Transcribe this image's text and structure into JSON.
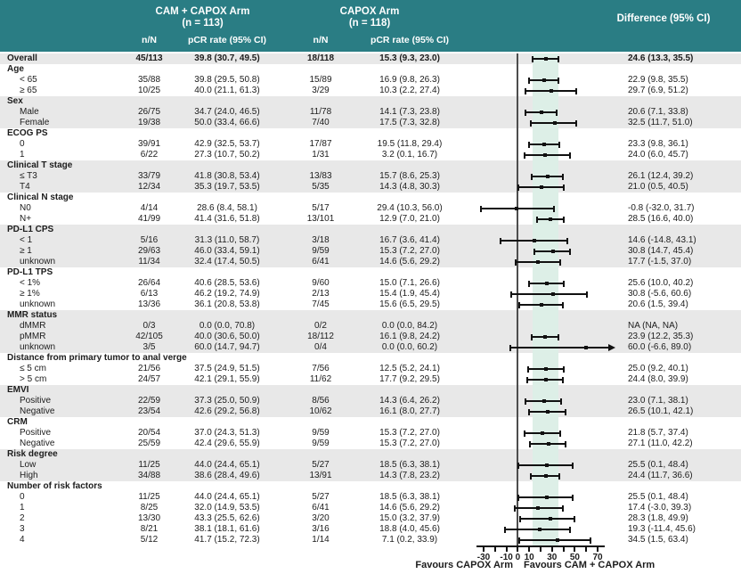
{
  "header": {
    "arm1_title": "CAM + CAPOX Arm",
    "arm1_n": "(n = 113)",
    "arm2_title": "CAPOX Arm",
    "arm2_n": "(n = 118)",
    "diff_title": "Difference (95% CI)",
    "col_nN": "n/N",
    "col_pcr": "pCR rate (95% CI)"
  },
  "colors": {
    "header_teal": "#2a7d84",
    "header_text": "#ffffff",
    "row_shade": "#e8e8e8",
    "ci_band": "#ddefe7",
    "marker_black": "#111111",
    "zero_line_gray": "#4d4d4d"
  },
  "chart_data": {
    "type": "forest",
    "axis": {
      "tick_start": -30,
      "tick_end": 70,
      "tick_step": 10,
      "tick_labels": [
        -30,
        -10,
        0,
        10,
        30,
        50,
        70
      ],
      "zero_ref": 0,
      "band": [
        13.3,
        35.5
      ],
      "xlabel_left": "Favours CAPOX Arm",
      "xlabel_right": "Favours CAM + CAPOX Arm"
    },
    "rows": [
      {
        "label": "Overall",
        "bold": true,
        "shade": true,
        "n1": "45/113",
        "pcr1": "39.8 (30.7, 49.5)",
        "n2": "18/118",
        "pcr2": "15.3 (9.3, 23.0)",
        "diff": "24.6 (13.3, 35.5)",
        "est": 24.6,
        "lo": 13.3,
        "hi": 35.5
      },
      {
        "label": "Age",
        "group": true,
        "bold": true,
        "shade": false
      },
      {
        "label": "< 65",
        "indent": true,
        "shade": false,
        "n1": "35/88",
        "pcr1": "39.8 (29.5, 50.8)",
        "n2": "15/89",
        "pcr2": "16.9 (9.8, 26.3)",
        "diff": "22.9 (9.8, 35.5)",
        "est": 22.9,
        "lo": 9.8,
        "hi": 35.5
      },
      {
        "label": "≥ 65",
        "indent": true,
        "shade": false,
        "n1": "10/25",
        "pcr1": "40.0 (21.1, 61.3)",
        "n2": "3/29",
        "pcr2": "10.3 (2.2, 27.4)",
        "diff": "29.7 (6.9, 51.2)",
        "est": 29.7,
        "lo": 6.9,
        "hi": 51.2
      },
      {
        "label": "Sex",
        "group": true,
        "bold": true,
        "shade": true
      },
      {
        "label": "Male",
        "indent": true,
        "shade": true,
        "n1": "26/75",
        "pcr1": "34.7 (24.0, 46.5)",
        "n2": "11/78",
        "pcr2": "14.1 (7.3, 23.8)",
        "diff": "20.6 (7.1, 33.8)",
        "est": 20.6,
        "lo": 7.1,
        "hi": 33.8
      },
      {
        "label": "Female",
        "indent": true,
        "shade": true,
        "n1": "19/38",
        "pcr1": "50.0 (33.4, 66.6)",
        "n2": "7/40",
        "pcr2": "17.5 (7.3, 32.8)",
        "diff": "32.5 (11.7, 51.0)",
        "est": 32.5,
        "lo": 11.7,
        "hi": 51.0
      },
      {
        "label": "ECOG PS",
        "group": true,
        "bold": true,
        "shade": false
      },
      {
        "label": "0",
        "indent": true,
        "shade": false,
        "n1": "39/91",
        "pcr1": "42.9 (32.5, 53.7)",
        "n2": "17/87",
        "pcr2": "19.5 (11.8, 29.4)",
        "diff": "23.3 (9.8, 36.1)",
        "est": 23.3,
        "lo": 9.8,
        "hi": 36.1
      },
      {
        "label": "1",
        "indent": true,
        "shade": false,
        "n1": "6/22",
        "pcr1": "27.3 (10.7, 50.2)",
        "n2": "1/31",
        "pcr2": "3.2 (0.1, 16.7)",
        "diff": "24.0 (6.0, 45.7)",
        "est": 24.0,
        "lo": 6.0,
        "hi": 45.7
      },
      {
        "label": "Clinical T stage",
        "group": true,
        "bold": true,
        "shade": true
      },
      {
        "label": "≤ T3",
        "indent": true,
        "shade": true,
        "n1": "33/79",
        "pcr1": "41.8 (30.8, 53.4)",
        "n2": "13/83",
        "pcr2": "15.7 (8.6, 25.3)",
        "diff": "26.1 (12.4, 39.2)",
        "est": 26.1,
        "lo": 12.4,
        "hi": 39.2
      },
      {
        "label": "T4",
        "indent": true,
        "shade": true,
        "n1": "12/34",
        "pcr1": "35.3 (19.7, 53.5)",
        "n2": "5/35",
        "pcr2": "14.3 (4.8, 30.3)",
        "diff": "21.0 (0.5, 40.5)",
        "est": 21.0,
        "lo": 0.5,
        "hi": 40.5
      },
      {
        "label": "Clinical N stage",
        "group": true,
        "bold": true,
        "shade": false
      },
      {
        "label": "N0",
        "indent": true,
        "shade": false,
        "n1": "4/14",
        "pcr1": "28.6 (8.4, 58.1)",
        "n2": "5/17",
        "pcr2": "29.4 (10.3, 56.0)",
        "diff": "-0.8 (-32.0, 31.7)",
        "est": -0.8,
        "lo": -32.0,
        "hi": 31.7
      },
      {
        "label": "N+",
        "indent": true,
        "shade": false,
        "n1": "41/99",
        "pcr1": "41.4 (31.6, 51.8)",
        "n2": "13/101",
        "pcr2": "12.9 (7.0, 21.0)",
        "diff": "28.5 (16.6, 40.0)",
        "est": 28.5,
        "lo": 16.6,
        "hi": 40.0
      },
      {
        "label": "PD-L1 CPS",
        "group": true,
        "bold": true,
        "shade": true
      },
      {
        "label": "< 1",
        "indent": true,
        "shade": true,
        "n1": "5/16",
        "pcr1": "31.3 (11.0, 58.7)",
        "n2": "3/18",
        "pcr2": "16.7 (3.6, 41.4)",
        "diff": "14.6 (-14.8, 43.1)",
        "est": 14.6,
        "lo": -14.8,
        "hi": 43.1
      },
      {
        "label": "≥ 1",
        "indent": true,
        "shade": true,
        "n1": "29/63",
        "pcr1": "46.0 (33.4, 59.1)",
        "n2": "9/59",
        "pcr2": "15.3 (7.2, 27.0)",
        "diff": "30.8 (14.7, 45.4)",
        "est": 30.8,
        "lo": 14.7,
        "hi": 45.4
      },
      {
        "label": "unknown",
        "indent": true,
        "shade": true,
        "n1": "11/34",
        "pcr1": "32.4 (17.4, 50.5)",
        "n2": "6/41",
        "pcr2": "14.6 (5.6, 29.2)",
        "diff": "17.7 (-1.5, 37.0)",
        "est": 17.7,
        "lo": -1.5,
        "hi": 37.0
      },
      {
        "label": "PD-L1 TPS",
        "group": true,
        "bold": true,
        "shade": false
      },
      {
        "label": "< 1%",
        "indent": true,
        "shade": false,
        "n1": "26/64",
        "pcr1": "40.6 (28.5, 53.6)",
        "n2": "9/60",
        "pcr2": "15.0 (7.1, 26.6)",
        "diff": "25.6 (10.0, 40.2)",
        "est": 25.6,
        "lo": 10.0,
        "hi": 40.2
      },
      {
        "label": "≥ 1%",
        "indent": true,
        "shade": false,
        "n1": "6/13",
        "pcr1": "46.2 (19.2, 74.9)",
        "n2": "2/13",
        "pcr2": "15.4 (1.9, 45.4)",
        "diff": "30.8 (-5.6, 60.6)",
        "est": 30.8,
        "lo": -5.6,
        "hi": 60.6
      },
      {
        "label": "unknown",
        "indent": true,
        "shade": false,
        "n1": "13/36",
        "pcr1": "36.1 (20.8, 53.8)",
        "n2": "7/45",
        "pcr2": "15.6 (6.5, 29.5)",
        "diff": "20.6 (1.5, 39.4)",
        "est": 20.6,
        "lo": 1.5,
        "hi": 39.4
      },
      {
        "label": "MMR status",
        "group": true,
        "bold": true,
        "shade": true
      },
      {
        "label": "dMMR",
        "indent": true,
        "shade": true,
        "n1": "0/3",
        "pcr1": "0.0 (0.0, 70.8)",
        "n2": "0/2",
        "pcr2": "0.0 (0.0, 84.2)",
        "diff": "NA (NA, NA)",
        "est": null
      },
      {
        "label": "pMMR",
        "indent": true,
        "shade": true,
        "n1": "42/105",
        "pcr1": "40.0 (30.6, 50.0)",
        "n2": "18/112",
        "pcr2": "16.1 (9.8, 24.2)",
        "diff": "23.9 (12.2, 35.3)",
        "est": 23.9,
        "lo": 12.2,
        "hi": 35.3
      },
      {
        "label": "unknown",
        "indent": true,
        "shade": true,
        "n1": "3/5",
        "pcr1": "60.0 (14.7, 94.7)",
        "n2": "0/4",
        "pcr2": "0.0 (0.0, 60.2)",
        "diff": "60.0 (-6.6, 89.0)",
        "est": 60.0,
        "lo": -6.6,
        "hi": 89.0,
        "arrow": true
      },
      {
        "label": "Distance from primary tumor to anal verge",
        "group": true,
        "bold": true,
        "shade": false
      },
      {
        "label": "≤ 5 cm",
        "indent": true,
        "shade": false,
        "n1": "21/56",
        "pcr1": "37.5 (24.9, 51.5)",
        "n2": "7/56",
        "pcr2": "12.5 (5.2, 24.1)",
        "diff": "25.0 (9.2, 40.1)",
        "est": 25.0,
        "lo": 9.2,
        "hi": 40.1
      },
      {
        "label": "> 5 cm",
        "indent": true,
        "shade": false,
        "n1": "24/57",
        "pcr1": "42.1 (29.1, 55.9)",
        "n2": "11/62",
        "pcr2": "17.7 (9.2, 29.5)",
        "diff": "24.4 (8.0, 39.9)",
        "est": 24.4,
        "lo": 8.0,
        "hi": 39.9
      },
      {
        "label": "EMVI",
        "group": true,
        "bold": true,
        "shade": true
      },
      {
        "label": "Positive",
        "indent": true,
        "shade": true,
        "n1": "22/59",
        "pcr1": "37.3 (25.0, 50.9)",
        "n2": "8/56",
        "pcr2": "14.3 (6.4, 26.2)",
        "diff": "23.0 (7.1, 38.1)",
        "est": 23.0,
        "lo": 7.1,
        "hi": 38.1
      },
      {
        "label": "Negative",
        "indent": true,
        "shade": true,
        "n1": "23/54",
        "pcr1": "42.6 (29.2, 56.8)",
        "n2": "10/62",
        "pcr2": "16.1 (8.0, 27.7)",
        "diff": "26.5 (10.1, 42.1)",
        "est": 26.5,
        "lo": 10.1,
        "hi": 42.1
      },
      {
        "label": "CRM",
        "group": true,
        "bold": true,
        "shade": false
      },
      {
        "label": "Positive",
        "indent": true,
        "shade": false,
        "n1": "20/54",
        "pcr1": "37.0 (24.3, 51.3)",
        "n2": "9/59",
        "pcr2": "15.3 (7.2, 27.0)",
        "diff": "21.8 (5.7, 37.4)",
        "est": 21.8,
        "lo": 5.7,
        "hi": 37.4
      },
      {
        "label": "Negative",
        "indent": true,
        "shade": false,
        "n1": "25/59",
        "pcr1": "42.4 (29.6, 55.9)",
        "n2": "9/59",
        "pcr2": "15.3 (7.2, 27.0)",
        "diff": "27.1 (11.0, 42.2)",
        "est": 27.1,
        "lo": 11.0,
        "hi": 42.2
      },
      {
        "label": "Risk degree",
        "group": true,
        "bold": true,
        "shade": true
      },
      {
        "label": "Low",
        "indent": true,
        "shade": true,
        "n1": "11/25",
        "pcr1": "44.0 (24.4, 65.1)",
        "n2": "5/27",
        "pcr2": "18.5 (6.3, 38.1)",
        "diff": "25.5 (0.1, 48.4)",
        "est": 25.5,
        "lo": 0.1,
        "hi": 48.4
      },
      {
        "label": "High",
        "indent": true,
        "shade": true,
        "n1": "34/88",
        "pcr1": "38.6 (28.4, 49.6)",
        "n2": "13/91",
        "pcr2": "14.3 (7.8, 23.2)",
        "diff": "24.4 (11.7, 36.6)",
        "est": 24.4,
        "lo": 11.7,
        "hi": 36.6
      },
      {
        "label": "Number of risk factors",
        "group": true,
        "bold": true,
        "shade": false
      },
      {
        "label": "0",
        "indent": true,
        "shade": false,
        "n1": "11/25",
        "pcr1": "44.0 (24.4, 65.1)",
        "n2": "5/27",
        "pcr2": "18.5 (6.3, 38.1)",
        "diff": "25.5 (0.1, 48.4)",
        "est": 25.5,
        "lo": 0.1,
        "hi": 48.4
      },
      {
        "label": "1",
        "indent": true,
        "shade": false,
        "n1": "8/25",
        "pcr1": "32.0 (14.9, 53.5)",
        "n2": "6/41",
        "pcr2": "14.6 (5.6, 29.2)",
        "diff": "17.4 (-3.0, 39.3)",
        "est": 17.4,
        "lo": -3.0,
        "hi": 39.3
      },
      {
        "label": "2",
        "indent": true,
        "shade": false,
        "n1": "13/30",
        "pcr1": "43.3 (25.5, 62.6)",
        "n2": "3/20",
        "pcr2": "15.0 (3.2, 37.9)",
        "diff": "28.3 (1.8, 49.9)",
        "est": 28.3,
        "lo": 1.8,
        "hi": 49.9
      },
      {
        "label": "3",
        "indent": true,
        "shade": false,
        "n1": "8/21",
        "pcr1": "38.1 (18.1, 61.6)",
        "n2": "3/16",
        "pcr2": "18.8 (4.0, 45.6)",
        "diff": "19.3 (-11.4, 45.6)",
        "est": 19.3,
        "lo": -11.4,
        "hi": 45.6
      },
      {
        "label": "4",
        "indent": true,
        "shade": false,
        "n1": "5/12",
        "pcr1": "41.7 (15.2, 72.3)",
        "n2": "1/14",
        "pcr2": "7.1 (0.2, 33.9)",
        "diff": "34.5 (1.5, 63.4)",
        "est": 34.5,
        "lo": 1.5,
        "hi": 63.4
      }
    ]
  }
}
